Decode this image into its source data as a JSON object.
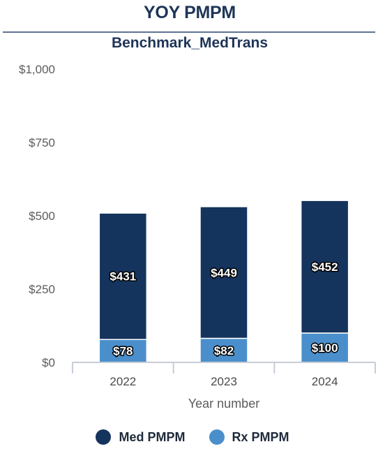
{
  "header": {
    "title": "YOY PMPM",
    "subtitle": "Benchmark_MedTrans"
  },
  "colors": {
    "med": "#15345d",
    "rx": "#4a8fcb",
    "axis": "#c7ccd6"
  },
  "chart_data": {
    "type": "bar",
    "stacked": true,
    "title": "YOY PMPM",
    "subtitle": "Benchmark_MedTrans",
    "xlabel": "Year number",
    "ylabel": "",
    "categories": [
      "2022",
      "2023",
      "2024"
    ],
    "ylim": [
      0,
      1000
    ],
    "yticks": [
      0,
      250,
      500,
      750,
      1000
    ],
    "ytick_labels": [
      "$0",
      "$250",
      "$500",
      "$750",
      "$1,000"
    ],
    "series": [
      {
        "name": "Rx PMPM",
        "values": [
          78,
          82,
          100
        ],
        "labels": [
          "$78",
          "$82",
          "$100"
        ]
      },
      {
        "name": "Med PMPM",
        "values": [
          431,
          449,
          452
        ],
        "labels": [
          "$431",
          "$449",
          "$452"
        ]
      }
    ],
    "legend_position": "bottom",
    "legend": [
      "Med PMPM",
      "Rx PMPM"
    ],
    "grid": false
  }
}
